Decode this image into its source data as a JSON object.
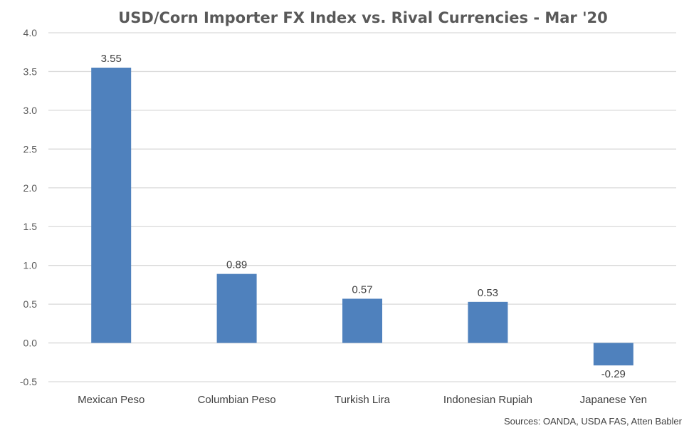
{
  "chart_data": {
    "type": "bar",
    "title": "USD/Corn Importer FX Index vs. Rival Currencies - Mar '20",
    "categories": [
      "Mexican Peso",
      "Columbian Peso",
      "Turkish Lira",
      "Indonesian Rupiah",
      "Japanese Yen"
    ],
    "values": [
      3.55,
      0.89,
      0.57,
      0.53,
      -0.29
    ],
    "data_labels": [
      "3.55",
      "0.89",
      "0.57",
      "0.53",
      "-0.29"
    ],
    "xlabel": "",
    "ylabel": "",
    "ylim": [
      -0.5,
      4.0
    ],
    "yticks": [
      "4.0",
      "3.5",
      "3.0",
      "2.5",
      "2.0",
      "1.5",
      "1.0",
      "0.5",
      "0.0",
      "-0.5"
    ],
    "grid": true,
    "legend": "none",
    "bar_color": "#4F81BD",
    "source": "Sources: OANDA, USDA FAS, Atten Babler"
  }
}
